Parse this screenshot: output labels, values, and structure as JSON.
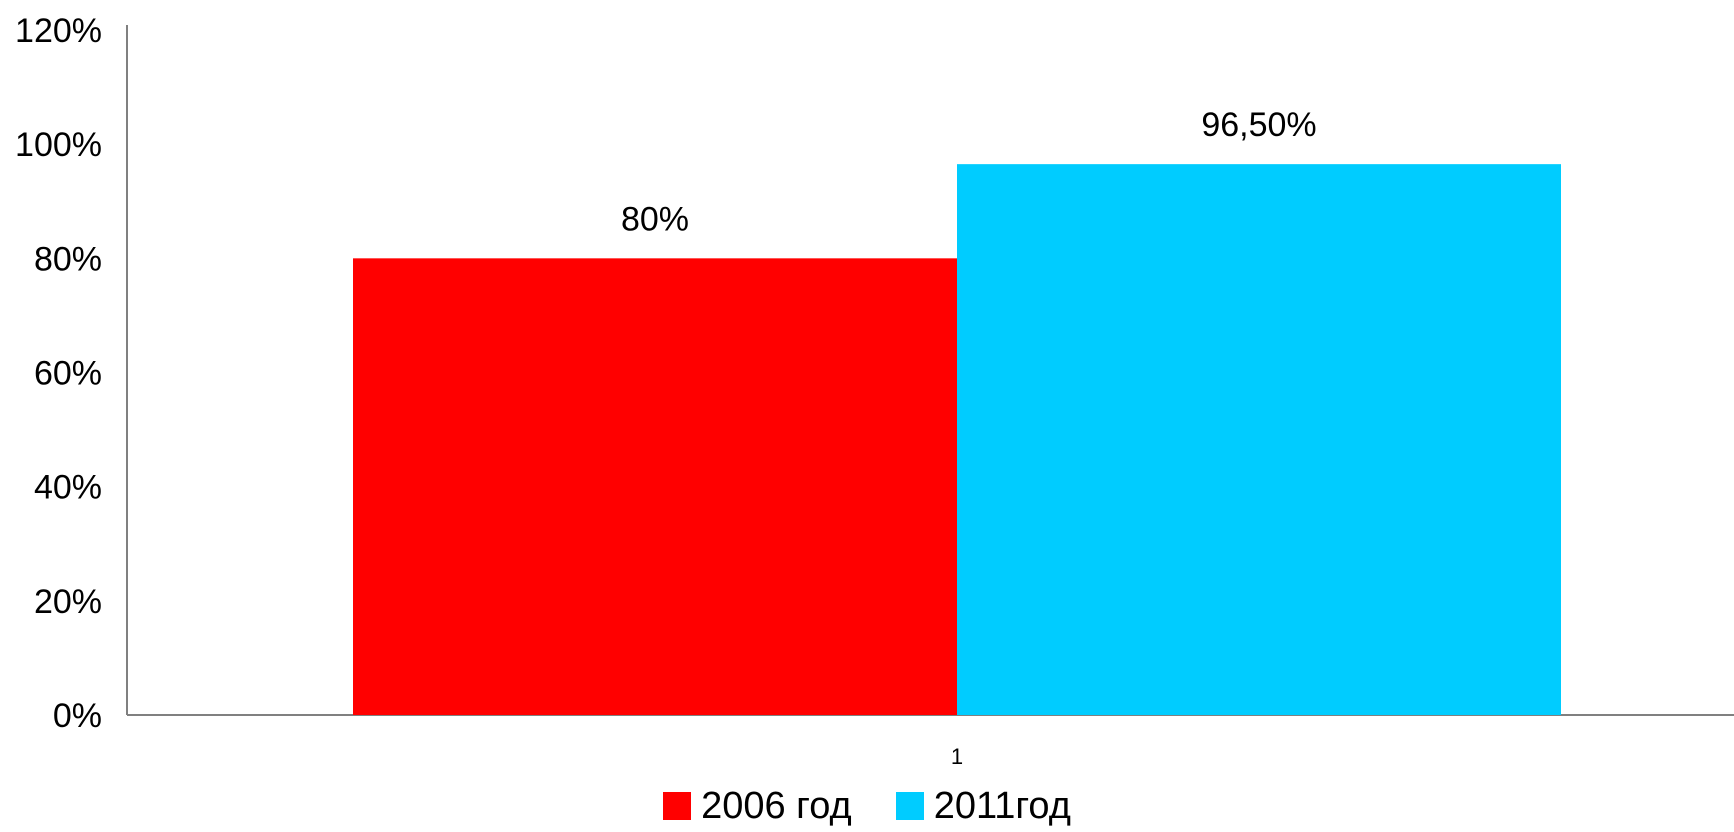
{
  "chart_data": {
    "type": "bar",
    "categories": [
      "1"
    ],
    "series": [
      {
        "name": "2006 год",
        "values": [
          80
        ],
        "color": "#ff0000",
        "label": "80%"
      },
      {
        "name": "2011год",
        "values": [
          96.5
        ],
        "color": "#00ccff",
        "label": "96,50%"
      }
    ],
    "yticks": [
      "0%",
      "20%",
      "40%",
      "60%",
      "80%",
      "100%",
      "120%"
    ],
    "ylim": [
      0,
      120
    ],
    "grid": false,
    "legend": "bottom"
  }
}
